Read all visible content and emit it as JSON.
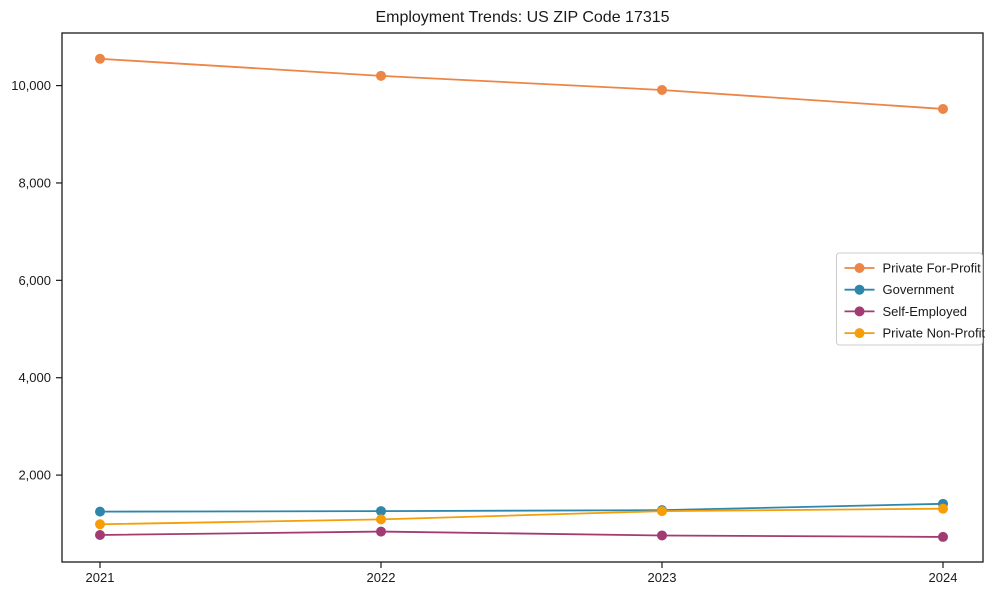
{
  "chart_data": {
    "type": "line",
    "title": "Employment Trends: US ZIP Code 17315",
    "xlabel": "",
    "ylabel": "",
    "categories": [
      "2021",
      "2022",
      "2023",
      "2024"
    ],
    "series": [
      {
        "name": "Private For-Profit",
        "color": "#ED8546",
        "values": [
          10550,
          10200,
          9910,
          9520
        ]
      },
      {
        "name": "Government",
        "color": "#2E86AB",
        "values": [
          1250,
          1260,
          1280,
          1410
        ]
      },
      {
        "name": "Self-Employed",
        "color": "#A23B72",
        "values": [
          770,
          840,
          760,
          730
        ]
      },
      {
        "name": "Private Non-Profit",
        "color": "#F59E07",
        "values": [
          990,
          1090,
          1260,
          1310
        ]
      }
    ],
    "y_ticks": [
      2000,
      4000,
      6000,
      8000,
      10000
    ],
    "ylim": [
      215,
      11080
    ],
    "grid": false,
    "marker": "o",
    "legend_position": "center right",
    "spine_color": "#1a1a1a",
    "legend_border_color": "#cccccc",
    "legend_background": "#ffffff"
  }
}
